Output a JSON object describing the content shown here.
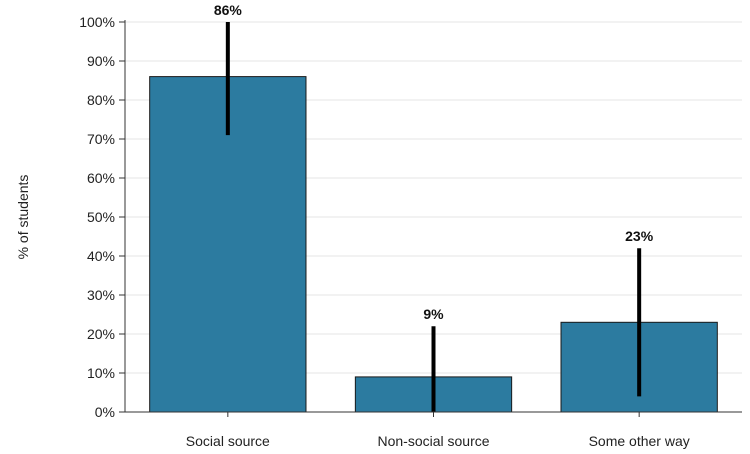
{
  "chart_data": {
    "type": "bar",
    "categories": [
      "Social source",
      "Non-social source",
      "Some other way"
    ],
    "values": [
      86,
      9,
      23
    ],
    "value_labels": [
      "86%",
      "9%",
      "23%"
    ],
    "error_bars": [
      {
        "low": 71,
        "high": 100
      },
      {
        "low": 0,
        "high": 22
      },
      {
        "low": 4,
        "high": 42
      }
    ],
    "ylabel": "% of students",
    "xlabel": "",
    "ylim": [
      0,
      100
    ],
    "yticks": [
      0,
      10,
      20,
      30,
      40,
      50,
      60,
      70,
      80,
      90,
      100
    ],
    "ytick_labels": [
      "0%",
      "10%",
      "20%",
      "30%",
      "40%",
      "50%",
      "60%",
      "70%",
      "80%",
      "90%",
      "100%"
    ],
    "grid": true,
    "legend": "none",
    "bar_color": "#2c7ba0"
  }
}
